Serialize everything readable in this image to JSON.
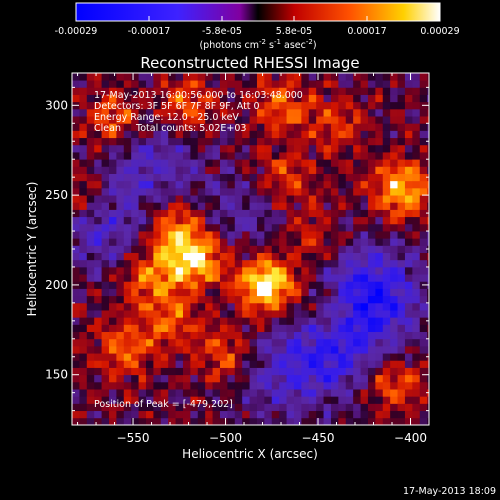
{
  "chart_data": {
    "type": "heatmap",
    "title": "Reconstructed RHESSI Image",
    "xlabel": "Heliocentric X (arcsec)",
    "ylabel": "Heliocentric Y (arcsec)",
    "xlim": [
      -583,
      -390
    ],
    "ylim": [
      122,
      318
    ],
    "xticks": [
      -550,
      -500,
      -450,
      -400
    ],
    "yticks": [
      150,
      200,
      250,
      300
    ],
    "colorbar": {
      "ticks": [
        "-0.00029",
        "-0.00017",
        "-5.8e-05",
        "5.8e-05",
        "0.00017",
        "0.00029"
      ],
      "unit_main": "(photons cm",
      "unit_sup1": "-2",
      "unit_mid": " s",
      "unit_sup2": "-1",
      "unit_end": " asec",
      "unit_sup3": "-2",
      "unit_close": ")",
      "range": [
        -0.00029,
        0.00029
      ]
    },
    "annotations": [
      "17-May-2013 16:00:56.000 to 16:03:48.000",
      "Detectors: 3F 5F 6F 7F 8F 9F, Att 0",
      "Energy Range: 12.0 - 25.0 keV",
      "Clean     Total counts: 5.02E+03"
    ],
    "peak_label": "Position of Peak = [-479,202]",
    "peak": [
      -479,
      202
    ],
    "bright_sources": [
      {
        "x": -478,
        "y": 201,
        "amp": 1.0
      },
      {
        "x": -516,
        "y": 215,
        "amp": 0.85
      },
      {
        "x": -528,
        "y": 232,
        "amp": 0.6
      },
      {
        "x": -405,
        "y": 253,
        "amp": 0.75
      },
      {
        "x": -560,
        "y": 292,
        "amp": 0.5
      },
      {
        "x": -540,
        "y": 205,
        "amp": 0.55
      },
      {
        "x": -500,
        "y": 160,
        "amp": 0.45
      },
      {
        "x": -555,
        "y": 165,
        "amp": 0.5
      },
      {
        "x": -470,
        "y": 300,
        "amp": 0.45
      },
      {
        "x": -520,
        "y": 300,
        "amp": 0.5
      },
      {
        "x": -470,
        "y": 260,
        "amp": 0.4
      },
      {
        "x": -440,
        "y": 290,
        "amp": 0.35
      },
      {
        "x": -575,
        "y": 250,
        "amp": 0.45
      },
      {
        "x": -410,
        "y": 145,
        "amp": 0.5
      },
      {
        "x": -445,
        "y": 185,
        "amp": 0.35
      },
      {
        "x": -455,
        "y": 230,
        "amp": 0.3
      },
      {
        "x": -530,
        "y": 180,
        "amp": 0.45
      }
    ],
    "dim_regions": [
      {
        "x": -420,
        "y": 195,
        "amp": 0.8
      },
      {
        "x": -440,
        "y": 165,
        "amp": 0.6
      },
      {
        "x": -565,
        "y": 235,
        "amp": 0.5
      },
      {
        "x": -470,
        "y": 150,
        "amp": 0.4
      },
      {
        "x": -540,
        "y": 270,
        "amp": 0.4
      },
      {
        "x": -490,
        "y": 240,
        "amp": 0.3
      }
    ]
  },
  "footer": {
    "timestamp": "17-May-2013 18:09"
  }
}
